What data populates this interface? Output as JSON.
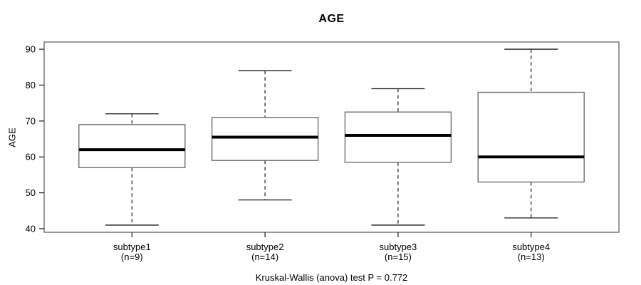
{
  "title": "AGE",
  "caption": "Kruskal-Wallis (anova) test P = 0.772",
  "colors": {
    "background": "#ffffff",
    "frame": "#6e6e6e",
    "box_border": "#6e6e6e",
    "whisker": "#1a1a1a",
    "median": "#000000",
    "text": "#000000"
  },
  "chart_data": {
    "type": "boxplot",
    "title": "AGE",
    "ylabel": "AGE",
    "xlabel": "",
    "ylim": [
      39,
      92
    ],
    "y_ticks": [
      40,
      50,
      60,
      70,
      80,
      90
    ],
    "grid": false,
    "caption": "Kruskal-Wallis (anova) test P = 0.772",
    "groups": [
      {
        "label": "subtype1",
        "n": 9,
        "n_label": "(n=9)",
        "whisker_low": 41,
        "q1": 57,
        "median": 62,
        "q3": 69,
        "whisker_high": 72,
        "outliers": []
      },
      {
        "label": "subtype2",
        "n": 14,
        "n_label": "(n=14)",
        "whisker_low": 48,
        "q1": 59,
        "median": 65.5,
        "q3": 71,
        "whisker_high": 84,
        "outliers": []
      },
      {
        "label": "subtype3",
        "n": 15,
        "n_label": "(n=15)",
        "whisker_low": 41,
        "q1": 58.5,
        "median": 66,
        "q3": 72.5,
        "whisker_high": 79,
        "outliers": []
      },
      {
        "label": "subtype4",
        "n": 13,
        "n_label": "(n=13)",
        "whisker_low": 43,
        "q1": 53,
        "median": 60,
        "q3": 78,
        "whisker_high": 90,
        "outliers": []
      }
    ]
  }
}
